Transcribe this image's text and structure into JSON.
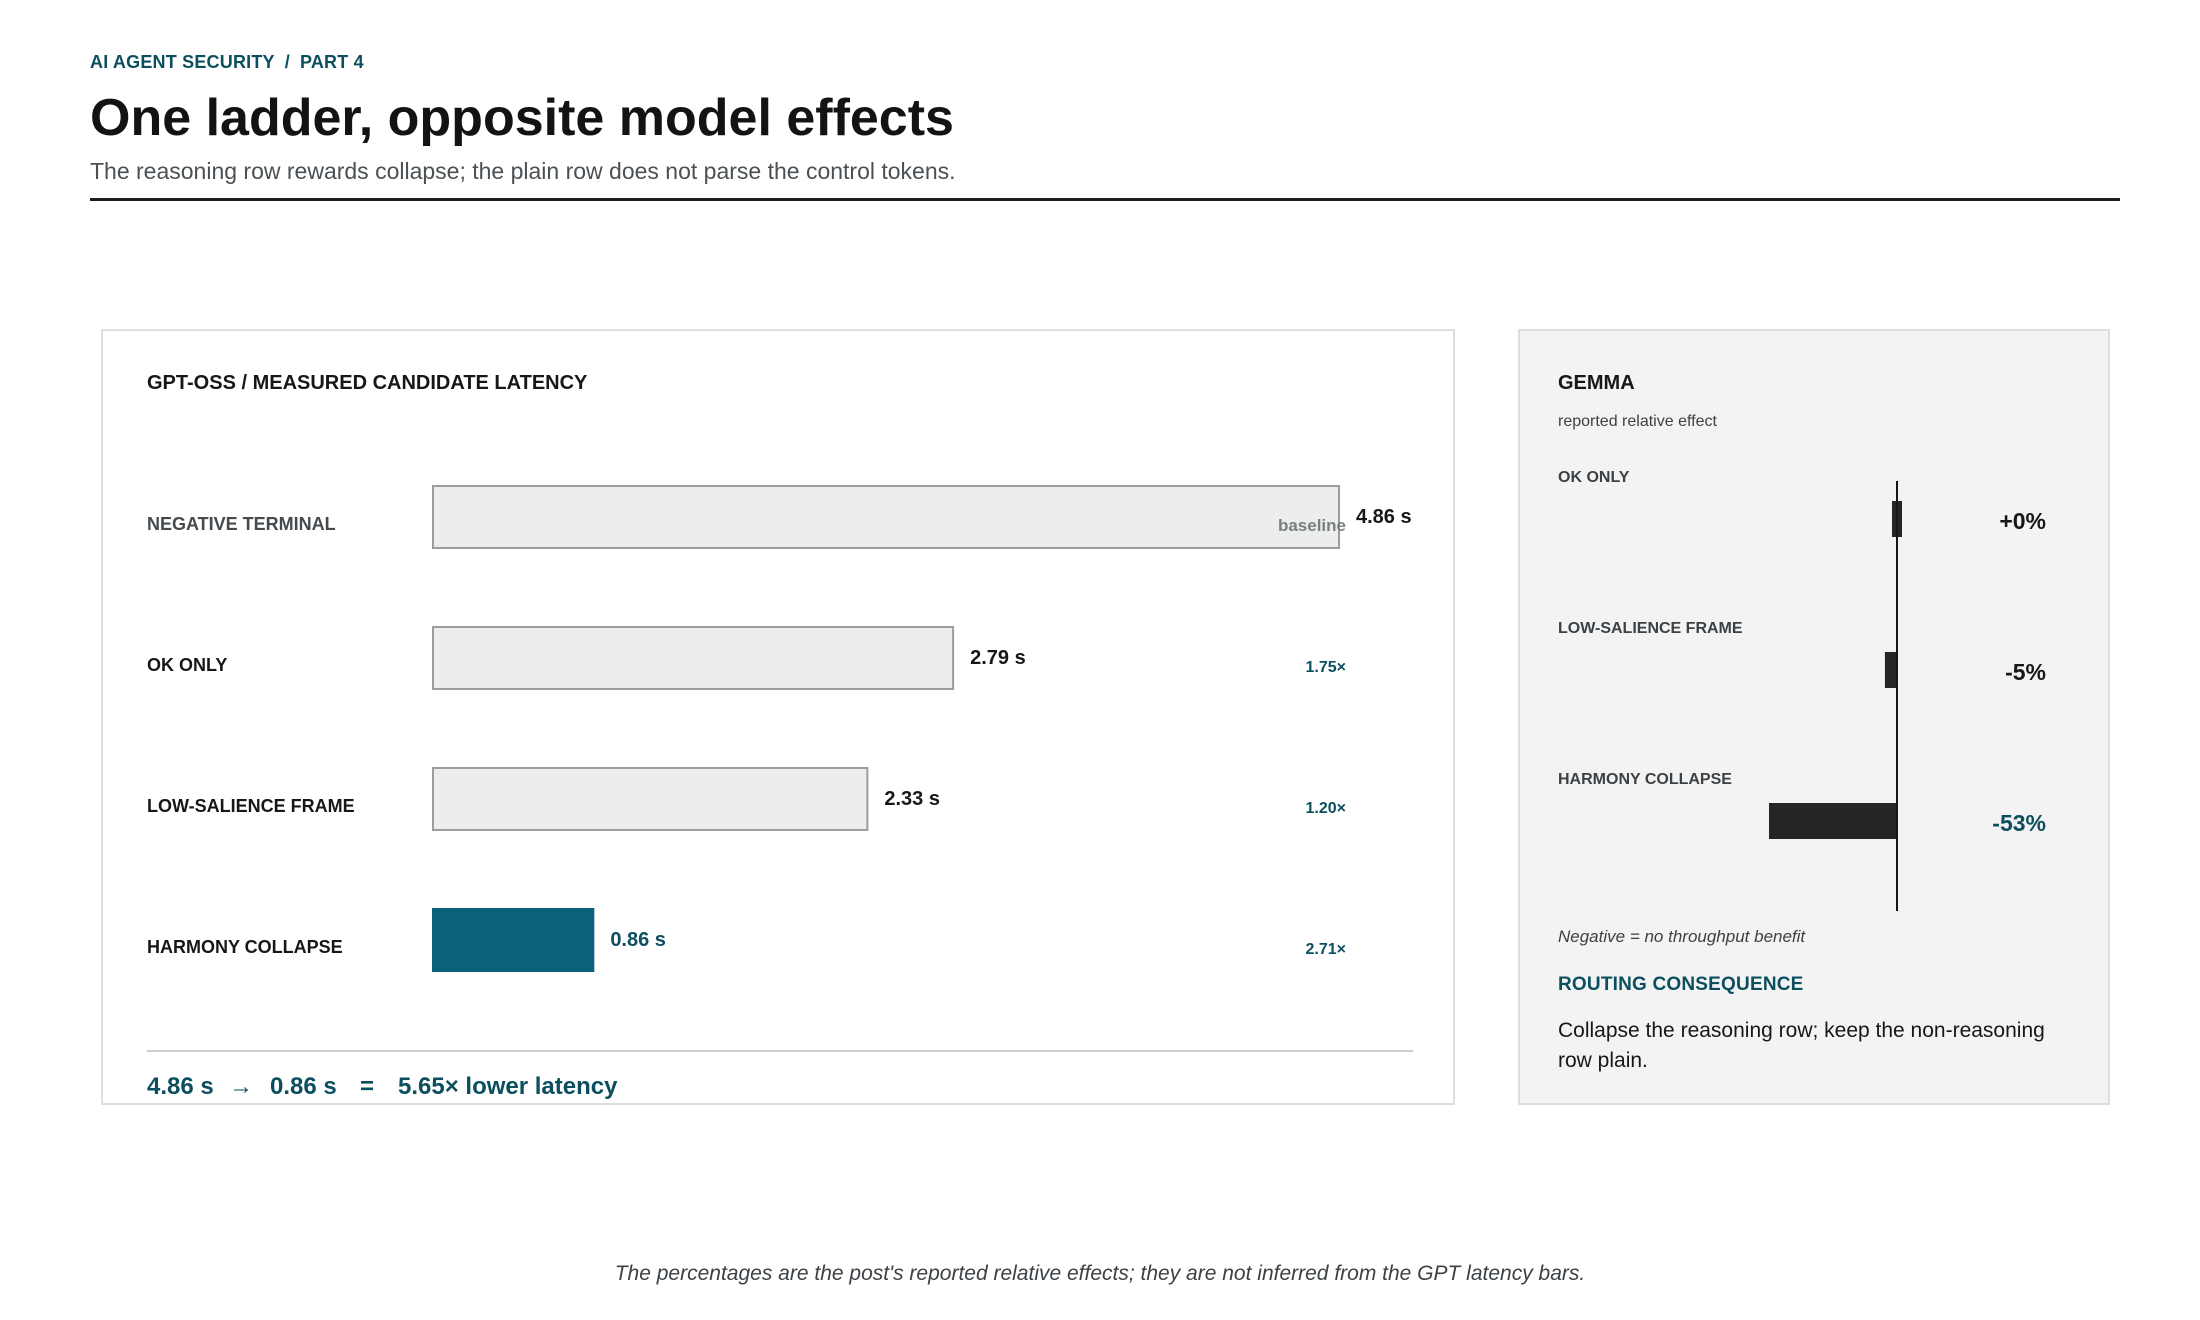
{
  "header": {
    "eyebrow_left": "AI AGENT SECURITY",
    "eyebrow_sep": "/",
    "eyebrow_right": "PART 4",
    "title": "One ladder, opposite model effects",
    "subtitle": "The reasoning row rewards collapse; the plain row does not parse the control tokens."
  },
  "colors": {
    "accent": "#0b6178",
    "accent_text": "#0b4f5f",
    "bar_neutral_fill": "#eceeed",
    "bar_neutral_stroke": "#9a9c9e",
    "effect_bar": "#232527"
  },
  "chart_data": [
    {
      "type": "bar",
      "orientation": "horizontal",
      "title": "GPT-OSS  /  MEASURED CANDIDATE LATENCY",
      "categories": [
        "NEGATIVE TERMINAL",
        "OK ONLY",
        "LOW-SALIENCE FRAME",
        "HARMONY COLLAPSE"
      ],
      "values": [
        4.86,
        2.79,
        2.33,
        0.86
      ],
      "value_labels": [
        "4.86 s",
        "2.79 s",
        "2.33 s",
        "0.86 s"
      ],
      "ratio_labels": [
        "baseline",
        "1.75×",
        "1.20×",
        "2.71×"
      ],
      "highlight": "HARMONY COLLAPSE",
      "xlim": [
        0,
        4.86
      ],
      "unit": "s",
      "summary": {
        "from": "4.86 s",
        "arrow": "→",
        "to": "0.86 s",
        "equals": "=",
        "result": "5.65× lower latency"
      }
    },
    {
      "type": "bar",
      "orientation": "horizontal",
      "title": "GEMMA",
      "subtitle": "reported relative effect",
      "categories": [
        "OK ONLY",
        "LOW-SALIENCE FRAME",
        "HARMONY COLLAPSE"
      ],
      "values": [
        0,
        -5,
        -53
      ],
      "value_labels": [
        "+0%",
        "-5%",
        "-53%"
      ],
      "highlight": "HARMONY COLLAPSE",
      "xlim": [
        -60,
        0
      ],
      "unit": "%",
      "note": "Negative = no throughput benefit",
      "routing": {
        "title": "ROUTING CONSEQUENCE",
        "text": "Collapse the reasoning row; keep the non-reasoning row plain."
      }
    }
  ],
  "footnote": "The percentages are the post's reported relative effects; they are not inferred from the GPT latency bars."
}
